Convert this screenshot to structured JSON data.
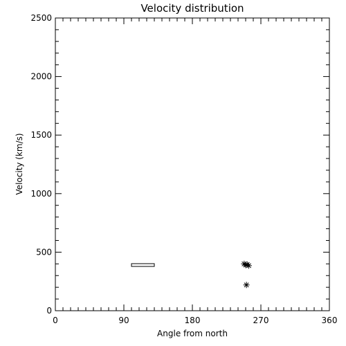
{
  "chart_data": {
    "type": "scatter",
    "title": "Velocity distribution",
    "xlabel": "Angle from north",
    "ylabel": "Velocity (km/s)",
    "xlim": [
      0,
      360
    ],
    "ylim": [
      0,
      2500
    ],
    "xticks": [
      0,
      90,
      180,
      270,
      360
    ],
    "yticks": [
      0,
      500,
      1000,
      1500,
      2000,
      2500
    ],
    "grid": false,
    "series": [
      {
        "marker": "asterisk",
        "points": [
          {
            "x": 248,
            "y": 400
          },
          {
            "x": 250,
            "y": 390
          },
          {
            "x": 252,
            "y": 395
          },
          {
            "x": 254,
            "y": 385
          },
          {
            "x": 251,
            "y": 220
          }
        ]
      }
    ],
    "range_bars": [
      {
        "x_start": 100,
        "x_end": 130,
        "y": 390
      }
    ]
  }
}
